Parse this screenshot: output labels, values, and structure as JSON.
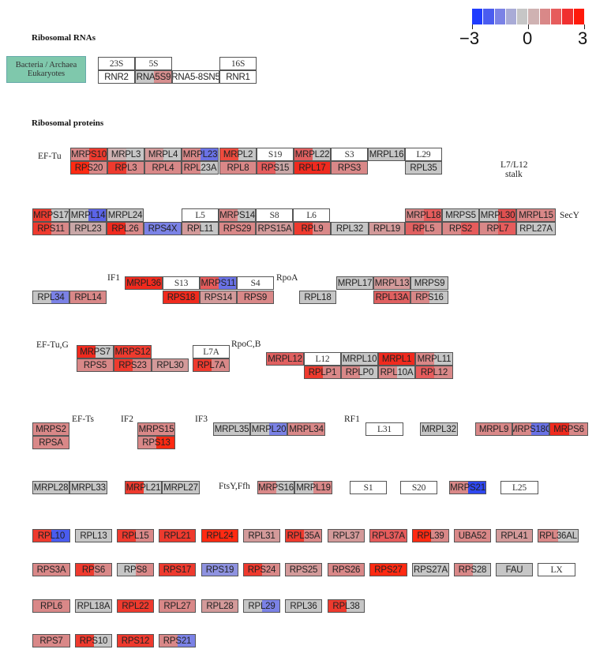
{
  "headings": {
    "rnas": "Ribosomal RNAs",
    "proteins": "Ribosomal proteins"
  },
  "legend": {
    "line1": "Bacteria / Archaea",
    "line2": "Eukaryotes",
    "fill": "#7fc8ac"
  },
  "scale": {
    "min": -3,
    "mid": 0,
    "max": 3,
    "min_label": "−3",
    "mid_label": "0",
    "max_label": "3",
    "colors": [
      "#1f3cff",
      "#4a5cf0",
      "#7b82e6",
      "#a9abd6",
      "#c6c6c6",
      "#cfb2b2",
      "#d98888",
      "#e65c5c",
      "#f03030",
      "#ff1a0a"
    ]
  },
  "annotations": [
    "EF-Tu",
    "L7/L12",
    "stalk",
    "SecY",
    "IF1",
    "RpoA",
    "EF-Tu,G",
    "RpoC,B",
    "EF-Ts",
    "IF2",
    "IF3",
    "RF1",
    "FtsY,Ffh"
  ],
  "nodes": [
    {
      "id": "23S",
      "text": "23S",
      "row": "rna_top",
      "plain": true
    },
    {
      "id": "5S",
      "text": "5S",
      "row": "rna_top",
      "plain": true
    },
    {
      "id": "16S",
      "text": "16S",
      "row": "rna_top",
      "plain": true
    },
    {
      "id": "RNR2",
      "text": "RNR2",
      "row": "rna_bot",
      "color": "#ffffff"
    },
    {
      "id": "RNA5S9",
      "text": "RNA5S9",
      "row": "rna_bot",
      "color": "#c9c9c9",
      "color2": "#d78f8f"
    },
    {
      "id": "RNA5-8SN5",
      "text": "RNA5-8SN5",
      "row": "rna_bot",
      "color": "#ffffff"
    },
    {
      "id": "RNR1",
      "text": "RNR1",
      "row": "rna_bot",
      "color": "#ffffff"
    },
    {
      "id": "MRPS10",
      "text": "MRPS10",
      "color": "#d98888",
      "color2": "#ee3a2e"
    },
    {
      "id": "MRPL3",
      "text": "MRPL3",
      "color": "#cfb2b2",
      "color2": "#c6c6c6"
    },
    {
      "id": "MRPL4",
      "text": "MRPL4",
      "color": "#d39a9a",
      "color2": "#c6c6c6"
    },
    {
      "id": "MRPL23",
      "text": "MRPL23",
      "color": "#d98888",
      "color2": "#6a72e6"
    },
    {
      "id": "MRPL2",
      "text": "MRPL2",
      "color": "#ee4b3e",
      "color2": "#c6c6c6"
    },
    {
      "id": "S19",
      "text": "S19",
      "plain": true
    },
    {
      "id": "MRPL22",
      "text": "MRPL22",
      "color": "#e06060",
      "color2": "#c6c6c6"
    },
    {
      "id": "S3",
      "text": "S3",
      "plain": true
    },
    {
      "id": "MRPL16",
      "text": "MRPL16",
      "color": "#c6c6c6"
    },
    {
      "id": "L29",
      "text": "L29",
      "plain": true
    },
    {
      "id": "RPS20",
      "text": "RPS20",
      "color": "#ff2a12",
      "color2": "#d98888"
    },
    {
      "id": "RPL3",
      "text": "RPL3",
      "color": "#ee3a2e",
      "color2": "#d98888"
    },
    {
      "id": "RPL4",
      "text": "RPL4",
      "color": "#d98888"
    },
    {
      "id": "RPL23A",
      "text": "RPL23A",
      "color": "#d98888",
      "color2": "#c6c6c6"
    },
    {
      "id": "RPL8",
      "text": "RPL8",
      "color": "#d98888"
    },
    {
      "id": "RPS15",
      "text": "RPS15",
      "color": "#e65c5c",
      "color2": "#c9a7a7"
    },
    {
      "id": "RPL17",
      "text": "RPL17",
      "color": "#f02a1e"
    },
    {
      "id": "RPS3",
      "text": "RPS3",
      "color": "#d98888"
    },
    {
      "id": "RPL35",
      "text": "RPL35",
      "color": "#c6c6c6"
    },
    {
      "id": "MRPS17",
      "text": "MRPS17",
      "color": "#ee3a2e",
      "color2": "#c6c6c6"
    },
    {
      "id": "MRPL14",
      "text": "MRPL14",
      "color": "#c6c6c6",
      "color2": "#5b64e8"
    },
    {
      "id": "MRPL24",
      "text": "MRPL24",
      "color": "#c6c6c6"
    },
    {
      "id": "L5",
      "text": "L5",
      "plain": true
    },
    {
      "id": "MRPS14",
      "text": "MRPS14",
      "color": "#d98888",
      "color2": "#c6c6c6"
    },
    {
      "id": "S8",
      "text": "S8",
      "plain": true
    },
    {
      "id": "L6",
      "text": "L6",
      "plain": true
    },
    {
      "id": "MRPL18",
      "text": "MRPL18",
      "color": "#d98888",
      "color2": "#e65c5c"
    },
    {
      "id": "MRPS5",
      "text": "MRPS5",
      "color": "#c6c6c6"
    },
    {
      "id": "MRPL30",
      "text": "MRPL30",
      "color": "#c6c6c6",
      "color2": "#e05050"
    },
    {
      "id": "MRPL15",
      "text": "MRPL15",
      "color": "#d98888"
    },
    {
      "id": "RPS11",
      "text": "RPS11",
      "color": "#ee3a2e",
      "color2": "#d98888"
    },
    {
      "id": "RPL23",
      "text": "RPL23",
      "color": "#c9a7a7"
    },
    {
      "id": "RPL26",
      "text": "RPL26",
      "color": "#f02a1e",
      "color2": "#d98888"
    },
    {
      "id": "RPS4X",
      "text": "RPS4X",
      "color": "#7b82e6"
    },
    {
      "id": "RPL11",
      "text": "RPL11",
      "color": "#d39a9a",
      "color2": "#c6c6c6"
    },
    {
      "id": "RPS29",
      "text": "RPS29",
      "color": "#d98888"
    },
    {
      "id": "RPS15A",
      "text": "RPS15A",
      "color": "#d39a9a"
    },
    {
      "id": "RPL9",
      "text": "RPL9",
      "color": "#ee3a2e",
      "color2": "#d98888"
    },
    {
      "id": "RPL32",
      "text": "RPL32",
      "color": "#c6c6c6"
    },
    {
      "id": "RPL19",
      "text": "RPL19",
      "color": "#d39a9a"
    },
    {
      "id": "RPL5",
      "text": "RPL5",
      "color": "#e06060",
      "color2": "#d98888"
    },
    {
      "id": "RPS2",
      "text": "RPS2",
      "color": "#d98888",
      "color2": "#e65c5c"
    },
    {
      "id": "RPL7",
      "text": "RPL7",
      "color": "#d98888",
      "color2": "#e65c5c"
    },
    {
      "id": "RPL27A",
      "text": "RPL27A",
      "color": "#c6c6c6"
    },
    {
      "id": "MRPL36",
      "text": "MRPL36",
      "color": "#f02a1e"
    },
    {
      "id": "S13",
      "text": "S13",
      "plain": true
    },
    {
      "id": "MRPS11",
      "text": "MRPS11",
      "color": "#e65c5c",
      "color2": "#6a72e6"
    },
    {
      "id": "S4",
      "text": "S4",
      "plain": true
    },
    {
      "id": "MRPL17",
      "text": "MRPL17",
      "color": "#c6c6c6"
    },
    {
      "id": "MRPL13",
      "text": "MRPL13",
      "color": "#d39a9a"
    },
    {
      "id": "MRPS9",
      "text": "MRPS9",
      "color": "#c6c6c6"
    },
    {
      "id": "RPL34",
      "text": "RPL34",
      "color": "#c6c6c6",
      "color2": "#7b82e6"
    },
    {
      "id": "RPL14",
      "text": "RPL14",
      "color": "#d98888"
    },
    {
      "id": "RPS18",
      "text": "RPS18",
      "color": "#f02a1e"
    },
    {
      "id": "RPS14",
      "text": "RPS14",
      "color": "#d39a9a"
    },
    {
      "id": "RPS9",
      "text": "RPS9",
      "color": "#d98888"
    },
    {
      "id": "RPL18",
      "text": "RPL18",
      "color": "#c6c6c6"
    },
    {
      "id": "RPL13A",
      "text": "RPL13A",
      "color": "#e06060"
    },
    {
      "id": "RPS16",
      "text": "RPS16",
      "color": "#d98888",
      "color2": "#c6c6c6"
    },
    {
      "id": "MRPS7",
      "text": "MRPS7",
      "color": "#f02a1e",
      "color2": "#c6c6c6"
    },
    {
      "id": "MRPS12",
      "text": "MRPS12",
      "color": "#ee3a2e"
    },
    {
      "id": "L7A",
      "text": "L7A",
      "plain": true
    },
    {
      "id": "MRPL12",
      "text": "MRPL12",
      "color": "#e06060"
    },
    {
      "id": "L12",
      "text": "L12",
      "plain": true
    },
    {
      "id": "MRPL10",
      "text": "MRPL10",
      "color": "#c6c6c6"
    },
    {
      "id": "MRPL1",
      "text": "MRPL1",
      "color": "#f02a1e"
    },
    {
      "id": "MRPL11",
      "text": "MRPL11",
      "color": "#d98888",
      "color2": "#c6c6c6"
    },
    {
      "id": "RPS5",
      "text": "RPS5",
      "color": "#d98888"
    },
    {
      "id": "RPS23",
      "text": "RPS23",
      "color": "#ee3a2e",
      "color2": "#d98888"
    },
    {
      "id": "RPL30",
      "text": "RPL30",
      "color": "#d39a9a"
    },
    {
      "id": "RPL7A",
      "text": "RPL7A",
      "color": "#ee3a2e",
      "color2": "#d98888"
    },
    {
      "id": "RPLP1",
      "text": "RPLP1",
      "color": "#ee3a2e",
      "color2": "#d98888"
    },
    {
      "id": "RPLP0",
      "text": "RPLP0",
      "color": "#d98888",
      "color2": "#c6c6c6"
    },
    {
      "id": "RPL10A",
      "text": "RPL10A",
      "color": "#d98888",
      "color2": "#c6c6c6"
    },
    {
      "id": "RPL12",
      "text": "RPL12",
      "color": "#e65c5c",
      "color2": "#d98888"
    },
    {
      "id": "MRPS2",
      "text": "MRPS2",
      "color": "#d98888"
    },
    {
      "id": "RPSA",
      "text": "RPSA",
      "color": "#d98888"
    },
    {
      "id": "MRPS15",
      "text": "MRPS15",
      "color": "#d98888"
    },
    {
      "id": "RPS13",
      "text": "RPS13",
      "color": "#d98888",
      "color2": "#ff2a12"
    },
    {
      "id": "MRPL35",
      "text": "MRPL35",
      "color": "#c6c6c6"
    },
    {
      "id": "MRPL20",
      "text": "MRPL20",
      "color": "#c6c6c6",
      "color2": "#7b82e6"
    },
    {
      "id": "MRPL34",
      "text": "MRPL34",
      "color": "#d98888"
    },
    {
      "id": "L31",
      "text": "L31",
      "plain": true
    },
    {
      "id": "MRPL32",
      "text": "MRPL32",
      "color": "#c6c6c6"
    },
    {
      "id": "MRPL9",
      "text": "MRPL9",
      "color": "#d98888"
    },
    {
      "id": "MRPS18C",
      "text": "MRPS18C",
      "color": "#d98888",
      "color2": "#6a72e6"
    },
    {
      "id": "MRPS6",
      "text": "MRPS6",
      "color": "#f02a1e",
      "color2": "#d98888"
    },
    {
      "id": "MRPL28",
      "text": "MRPL28",
      "color": "#c6c6c6"
    },
    {
      "id": "MRPL33",
      "text": "MRPL33",
      "color": "#c6c6c6"
    },
    {
      "id": "MRPL21",
      "text": "MRPL21",
      "color": "#ee3a2e",
      "color2": "#c6c6c6"
    },
    {
      "id": "MRPL27",
      "text": "MRPL27",
      "color": "#c6c6c6"
    },
    {
      "id": "MRPS16",
      "text": "MRPS16",
      "color": "#d98888",
      "color2": "#c6c6c6"
    },
    {
      "id": "MRPL19",
      "text": "MRPL19",
      "color": "#c6c6c6",
      "color2": "#d98888"
    },
    {
      "id": "S1",
      "text": "S1",
      "plain": true
    },
    {
      "id": "S20",
      "text": "S20",
      "plain": true
    },
    {
      "id": "MRPS21",
      "text": "MRPS21",
      "color": "#d98888",
      "color2": "#2f48f0"
    },
    {
      "id": "L25",
      "text": "L25",
      "plain": true
    },
    {
      "id": "RPL10",
      "text": "RPL10",
      "color": "#ee3a2e",
      "color2": "#4a5cf0"
    },
    {
      "id": "RPL13",
      "text": "RPL13",
      "color": "#c6c6c6"
    },
    {
      "id": "RPL15",
      "text": "RPL15",
      "color": "#ee3a2e",
      "color2": "#d98888"
    },
    {
      "id": "RPL21",
      "text": "RPL21",
      "color": "#ee3a2e"
    },
    {
      "id": "RPL24",
      "text": "RPL24",
      "color": "#ff2a12"
    },
    {
      "id": "RPL31",
      "text": "RPL31",
      "color": "#d39a9a"
    },
    {
      "id": "RPL35A",
      "text": "RPL35A",
      "color": "#ee3a2e",
      "color2": "#d98888"
    },
    {
      "id": "RPL37",
      "text": "RPL37",
      "color": "#d39a9a"
    },
    {
      "id": "RPL37A",
      "text": "RPL37A",
      "color": "#e65c5c"
    },
    {
      "id": "RPL39",
      "text": "RPL39",
      "color": "#ff2a12",
      "color2": "#d98888"
    },
    {
      "id": "UBA52",
      "text": "UBA52",
      "color": "#d98888"
    },
    {
      "id": "RPL41",
      "text": "RPL41",
      "color": "#d39a9a"
    },
    {
      "id": "RPL36AL",
      "text": "RPL36AL",
      "color": "#d98888",
      "color2": "#c6c6c6"
    },
    {
      "id": "RPS3A",
      "text": "RPS3A",
      "color": "#d98888"
    },
    {
      "id": "RPS6",
      "text": "RPS6",
      "color": "#ee3a2e",
      "color2": "#d98888"
    },
    {
      "id": "RPS8",
      "text": "RPS8",
      "color": "#c6c6c6",
      "color2": "#d98888"
    },
    {
      "id": "RPS17",
      "text": "RPS17",
      "color": "#ee3a2e"
    },
    {
      "id": "RPS19",
      "text": "RPS19",
      "color": "#8e92e0"
    },
    {
      "id": "RPS24",
      "text": "RPS24",
      "color": "#ee3a2e",
      "color2": "#d98888"
    },
    {
      "id": "RPS25",
      "text": "RPS25",
      "color": "#d39a9a"
    },
    {
      "id": "RPS26",
      "text": "RPS26",
      "color": "#d98888"
    },
    {
      "id": "RPS27",
      "text": "RPS27",
      "color": "#ff2a12"
    },
    {
      "id": "RPS27A",
      "text": "RPS27A",
      "color": "#c6c6c6"
    },
    {
      "id": "RPS28",
      "text": "RPS28",
      "color": "#d98888",
      "color2": "#c6c6c6"
    },
    {
      "id": "FAU",
      "text": "FAU",
      "color": "#c6c6c6"
    },
    {
      "id": "LX",
      "text": "LX",
      "plain": true
    },
    {
      "id": "RPL6",
      "text": "RPL6",
      "color": "#d98888"
    },
    {
      "id": "RPL18A",
      "text": "RPL18A",
      "color": "#c6c6c6"
    },
    {
      "id": "RPL22",
      "text": "RPL22",
      "color": "#ee3a2e"
    },
    {
      "id": "RPL27",
      "text": "RPL27",
      "color": "#d98888"
    },
    {
      "id": "RPL28",
      "text": "RPL28",
      "color": "#d39a9a"
    },
    {
      "id": "RPL29",
      "text": "RPL29",
      "color": "#c6c6c6",
      "color2": "#7b82e6"
    },
    {
      "id": "RPL36",
      "text": "RPL36",
      "color": "#c6c6c6"
    },
    {
      "id": "RPL38",
      "text": "RPL38",
      "color": "#ee3a2e",
      "color2": "#c6c6c6"
    },
    {
      "id": "RPS7",
      "text": "RPS7",
      "color": "#d98888"
    },
    {
      "id": "RPS10",
      "text": "RPS10",
      "color": "#ee3a2e",
      "color2": "#c6c6c6"
    },
    {
      "id": "RPS12",
      "text": "RPS12",
      "color": "#ee3a2e"
    },
    {
      "id": "RPS21",
      "text": "RPS21",
      "color": "#d98888",
      "color2": "#7b82e6"
    }
  ]
}
